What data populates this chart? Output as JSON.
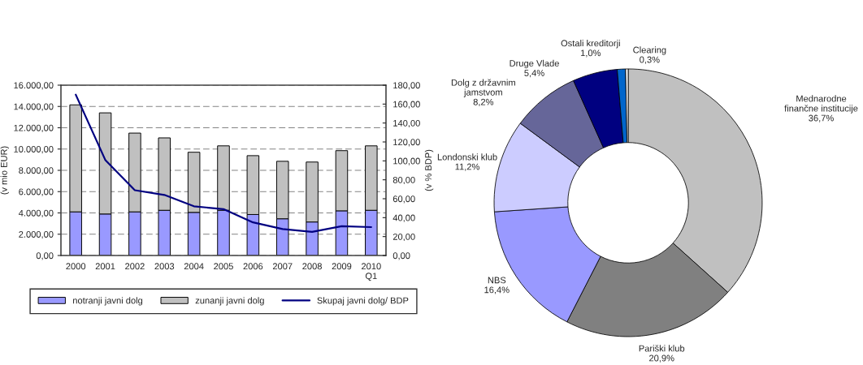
{
  "chart_data": [
    {
      "type": "bar",
      "stacked": true,
      "categories": [
        "2000",
        "2001",
        "2002",
        "2003",
        "2004",
        "2005",
        "2006",
        "2007",
        "2008",
        "2009",
        "2010\nQ1"
      ],
      "series": [
        {
          "name": "notranji javni dolg",
          "color": "#9999ff",
          "values": [
            4100,
            3900,
            4100,
            4250,
            4050,
            4250,
            3850,
            3450,
            3150,
            4200,
            4250
          ]
        },
        {
          "name": "zunanji javni dolg",
          "color": "#c0c0c0",
          "values": [
            10050,
            9500,
            7400,
            6800,
            5650,
            6050,
            5530,
            5400,
            5630,
            5650,
            6050
          ]
        },
        {
          "name": "Skupaj javni dolg/ BDP",
          "type": "line",
          "axis": "y2",
          "color": "#000080",
          "values": [
            170,
            101,
            69,
            64,
            52,
            49,
            35,
            28,
            25,
            31,
            30
          ]
        }
      ],
      "ylabel": "(v mio EUR)",
      "y2label": "(v % BDP)",
      "ylim": [
        0,
        16000
      ],
      "yticks": [
        {
          "value": 0,
          "label": "0,00"
        },
        {
          "value": 2000,
          "label": "2.000,00"
        },
        {
          "value": 4000,
          "label": "4.000,00"
        },
        {
          "value": 6000,
          "label": "6.000,00"
        },
        {
          "value": 8000,
          "label": "8.000,00"
        },
        {
          "value": 10000,
          "label": "10.000,00"
        },
        {
          "value": 12000,
          "label": "12.000,00"
        },
        {
          "value": 14000,
          "label": "14.000,00"
        },
        {
          "value": 16000,
          "label": "16.000,00"
        }
      ],
      "y2lim": [
        0,
        180
      ],
      "y2ticks": [
        {
          "value": 0,
          "label": "0,00"
        },
        {
          "value": 20,
          "label": "20,00"
        },
        {
          "value": 40,
          "label": "40,00"
        },
        {
          "value": 60,
          "label": "60,00"
        },
        {
          "value": 80,
          "label": "80,00"
        },
        {
          "value": 100,
          "label": "100,00"
        },
        {
          "value": 120,
          "label": "120,00"
        },
        {
          "value": 140,
          "label": "140,00"
        },
        {
          "value": 160,
          "label": "160,00"
        },
        {
          "value": 180,
          "label": "180,00"
        }
      ],
      "grid": "y",
      "legend": "bottom"
    },
    {
      "type": "donut",
      "categories": [
        "Mednarodne\nfinančne institucije",
        "Pariški klub",
        "NBS",
        "Londonski klub",
        "Dolg z državnim\njamstvom",
        "Druge Vlade",
        "Ostali kreditorji",
        "Clearing"
      ],
      "values": [
        36.7,
        20.9,
        16.4,
        11.2,
        8.2,
        5.4,
        1.0,
        0.3
      ],
      "value_labels": [
        "36,7%",
        "20,9%",
        "16,4%",
        "11,2%",
        "8,2%",
        "5,4%",
        "1,0%",
        "0,3%"
      ],
      "colors": [
        "#c0c0c0",
        "#808080",
        "#9999ff",
        "#ccccff",
        "#666699",
        "#000080",
        "#0066cc",
        "#ffffff"
      ]
    }
  ]
}
